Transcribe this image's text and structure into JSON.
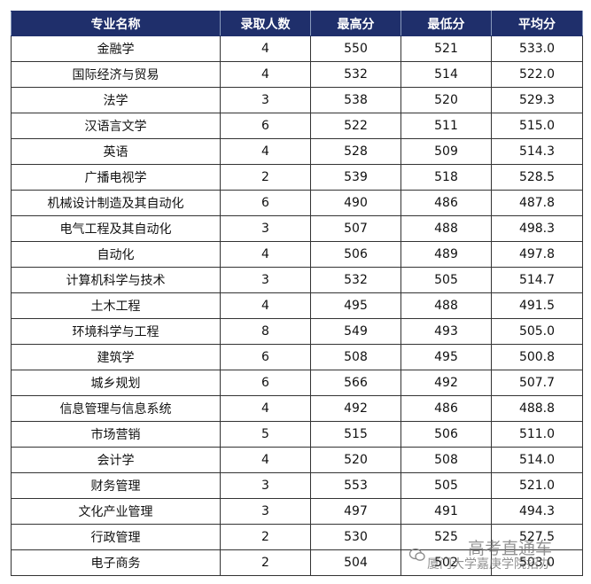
{
  "table": {
    "header": [
      "专业名称",
      "录取人数",
      "最高分",
      "最低分",
      "平均分"
    ],
    "rows": [
      [
        "金融学",
        "4",
        "550",
        "521",
        "533.0"
      ],
      [
        "国际经济与贸易",
        "4",
        "532",
        "514",
        "522.0"
      ],
      [
        "法学",
        "3",
        "538",
        "520",
        "529.3"
      ],
      [
        "汉语言文学",
        "6",
        "522",
        "511",
        "515.0"
      ],
      [
        "英语",
        "4",
        "528",
        "509",
        "514.3"
      ],
      [
        "广播电视学",
        "2",
        "539",
        "518",
        "528.5"
      ],
      [
        "机械设计制造及其自动化",
        "6",
        "490",
        "486",
        "487.8"
      ],
      [
        "电气工程及其自动化",
        "3",
        "507",
        "488",
        "498.3"
      ],
      [
        "自动化",
        "4",
        "506",
        "489",
        "497.8"
      ],
      [
        "计算机科学与技术",
        "3",
        "532",
        "505",
        "514.7"
      ],
      [
        "土木工程",
        "4",
        "495",
        "488",
        "491.5"
      ],
      [
        "环境科学与工程",
        "8",
        "549",
        "493",
        "505.0"
      ],
      [
        "建筑学",
        "6",
        "508",
        "495",
        "500.8"
      ],
      [
        "城乡规划",
        "6",
        "566",
        "492",
        "507.7"
      ],
      [
        "信息管理与信息系统",
        "4",
        "492",
        "486",
        "488.8"
      ],
      [
        "市场营销",
        "5",
        "515",
        "506",
        "511.0"
      ],
      [
        "会计学",
        "4",
        "520",
        "508",
        "514.0"
      ],
      [
        "财务管理",
        "3",
        "553",
        "505",
        "521.0"
      ],
      [
        "文化产业管理",
        "3",
        "497",
        "491",
        "494.3"
      ],
      [
        "行政管理",
        "2",
        "530",
        "525",
        "527.5"
      ],
      [
        "电子商务",
        "2",
        "504",
        "502",
        "503.0"
      ]
    ]
  },
  "watermark": {
    "title": "高考直通车",
    "source": "厦门大学嘉庚学院招办"
  }
}
